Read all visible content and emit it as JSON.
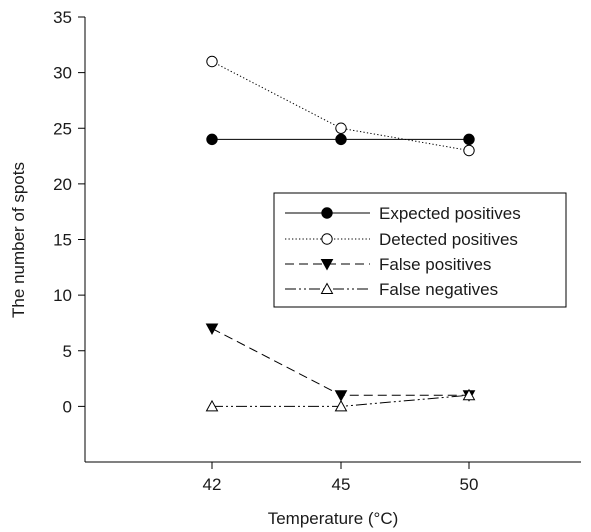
{
  "chart_data": {
    "type": "line",
    "title": "",
    "xlabel": "Temperature (°C)",
    "ylabel": "The number of spots",
    "categories": [
      "42",
      "45",
      "50"
    ],
    "ylim": [
      -5,
      35
    ],
    "yticks": [
      0,
      5,
      10,
      15,
      20,
      25,
      30,
      35
    ],
    "grid": false,
    "legend_position": "right-center",
    "series": [
      {
        "name": "Expected positives",
        "values": [
          24,
          24,
          24
        ],
        "marker": "filled-circle",
        "line_style": "solid",
        "color": "#000000"
      },
      {
        "name": "Detected positives",
        "values": [
          31,
          25,
          23
        ],
        "marker": "open-circle",
        "line_style": "dotted",
        "color": "#000000"
      },
      {
        "name": "False positives",
        "values": [
          7,
          1,
          1
        ],
        "marker": "filled-triangle-down",
        "line_style": "dashed",
        "color": "#000000"
      },
      {
        "name": "False negatives",
        "values": [
          0,
          0,
          1
        ],
        "marker": "open-triangle-up",
        "line_style": "dash-dot-dot",
        "color": "#000000"
      }
    ]
  }
}
